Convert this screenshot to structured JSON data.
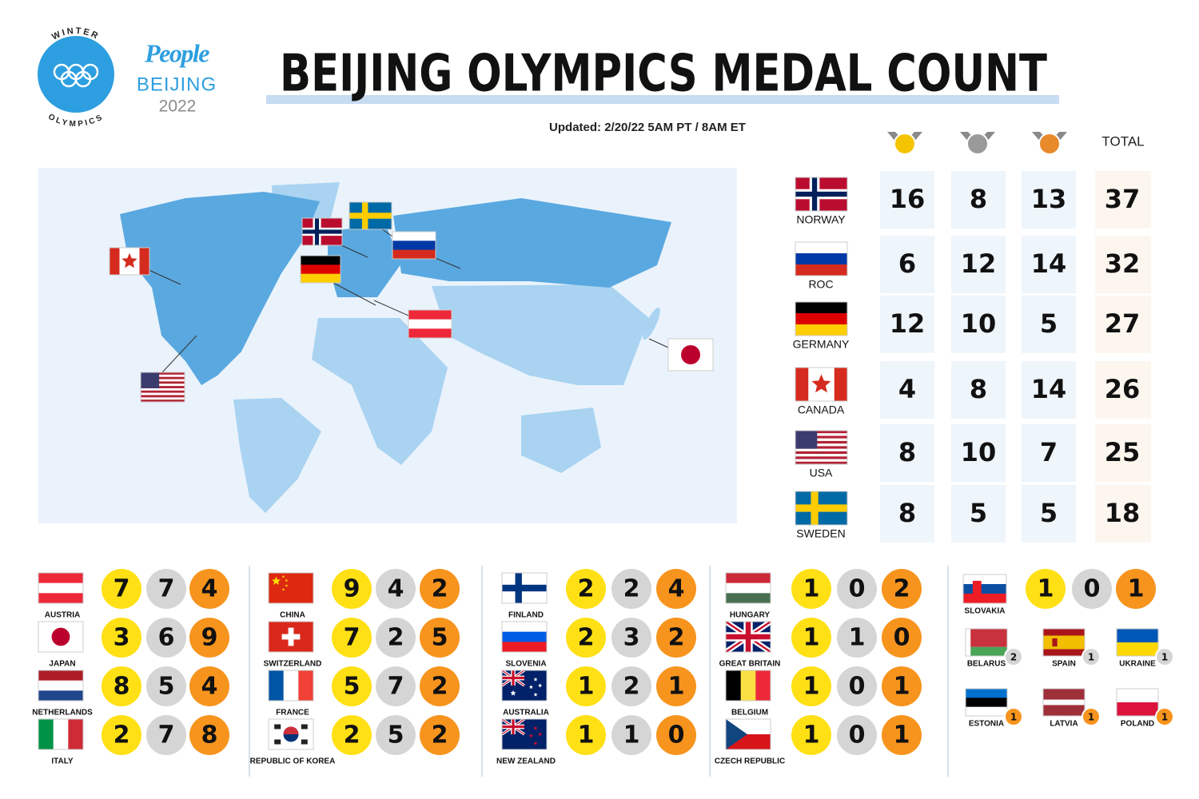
{
  "header": {
    "logo_top": "WINTER",
    "logo_bottom": "OLYMPICS",
    "brand": "People",
    "city": "BEIJING",
    "year": "2022",
    "title": "BEIJING OLYMPICS MEDAL COUNT",
    "updated": "Updated: 2/20/22 5AM PT / 8AM ET",
    "total_label": "TOTAL"
  },
  "top": [
    {
      "country": "NORWAY",
      "gold": 16,
      "silver": 8,
      "bronze": 13,
      "total": 37
    },
    {
      "country": "ROC",
      "gold": 6,
      "silver": 12,
      "bronze": 14,
      "total": 32
    },
    {
      "country": "GERMANY",
      "gold": 12,
      "silver": 10,
      "bronze": 5,
      "total": 27
    },
    {
      "country": "CANADA",
      "gold": 4,
      "silver": 8,
      "bronze": 14,
      "total": 26
    },
    {
      "country": "USA",
      "gold": 8,
      "silver": 10,
      "bronze": 7,
      "total": 25
    },
    {
      "country": "SWEDEN",
      "gold": 8,
      "silver": 5,
      "bronze": 5,
      "total": 18
    }
  ],
  "groups": [
    [
      {
        "country": "AUSTRIA",
        "gold": 7,
        "silver": 7,
        "bronze": 4
      },
      {
        "country": "JAPAN",
        "gold": 3,
        "silver": 6,
        "bronze": 9
      },
      {
        "country": "NETHERLANDS",
        "gold": 8,
        "silver": 5,
        "bronze": 4
      },
      {
        "country": "ITALY",
        "gold": 2,
        "silver": 7,
        "bronze": 8
      }
    ],
    [
      {
        "country": "CHINA",
        "gold": 9,
        "silver": 4,
        "bronze": 2
      },
      {
        "country": "SWITZERLAND",
        "gold": 7,
        "silver": 2,
        "bronze": 5
      },
      {
        "country": "FRANCE",
        "gold": 5,
        "silver": 7,
        "bronze": 2
      },
      {
        "country": "REPUBLIC OF KOREA",
        "gold": 2,
        "silver": 5,
        "bronze": 2
      }
    ],
    [
      {
        "country": "FINLAND",
        "gold": 2,
        "silver": 2,
        "bronze": 4
      },
      {
        "country": "SLOVENIA",
        "gold": 2,
        "silver": 3,
        "bronze": 2
      },
      {
        "country": "AUSTRALIA",
        "gold": 1,
        "silver": 2,
        "bronze": 1
      },
      {
        "country": "NEW ZEALAND",
        "gold": 1,
        "silver": 1,
        "bronze": 0
      }
    ],
    [
      {
        "country": "HUNGARY",
        "gold": 1,
        "silver": 0,
        "bronze": 2
      },
      {
        "country": "GREAT BRITAIN",
        "gold": 1,
        "silver": 1,
        "bronze": 0
      },
      {
        "country": "BELGIUM",
        "gold": 1,
        "silver": 0,
        "bronze": 1
      },
      {
        "country": "CZECH REPUBLIC",
        "gold": 1,
        "silver": 0,
        "bronze": 1
      }
    ]
  ],
  "lead_small": {
    "country": "SLOVAKIA",
    "gold": 1,
    "silver": 0,
    "bronze": 1
  },
  "small": [
    {
      "country": "BELARUS",
      "silver": 2
    },
    {
      "country": "SPAIN",
      "silver": 1
    },
    {
      "country": "UKRAINE",
      "silver": 1
    },
    {
      "country": "ESTONIA",
      "bronze": 1
    },
    {
      "country": "LATVIA",
      "bronze": 1
    },
    {
      "country": "POLAND",
      "bronze": 1
    }
  ]
}
